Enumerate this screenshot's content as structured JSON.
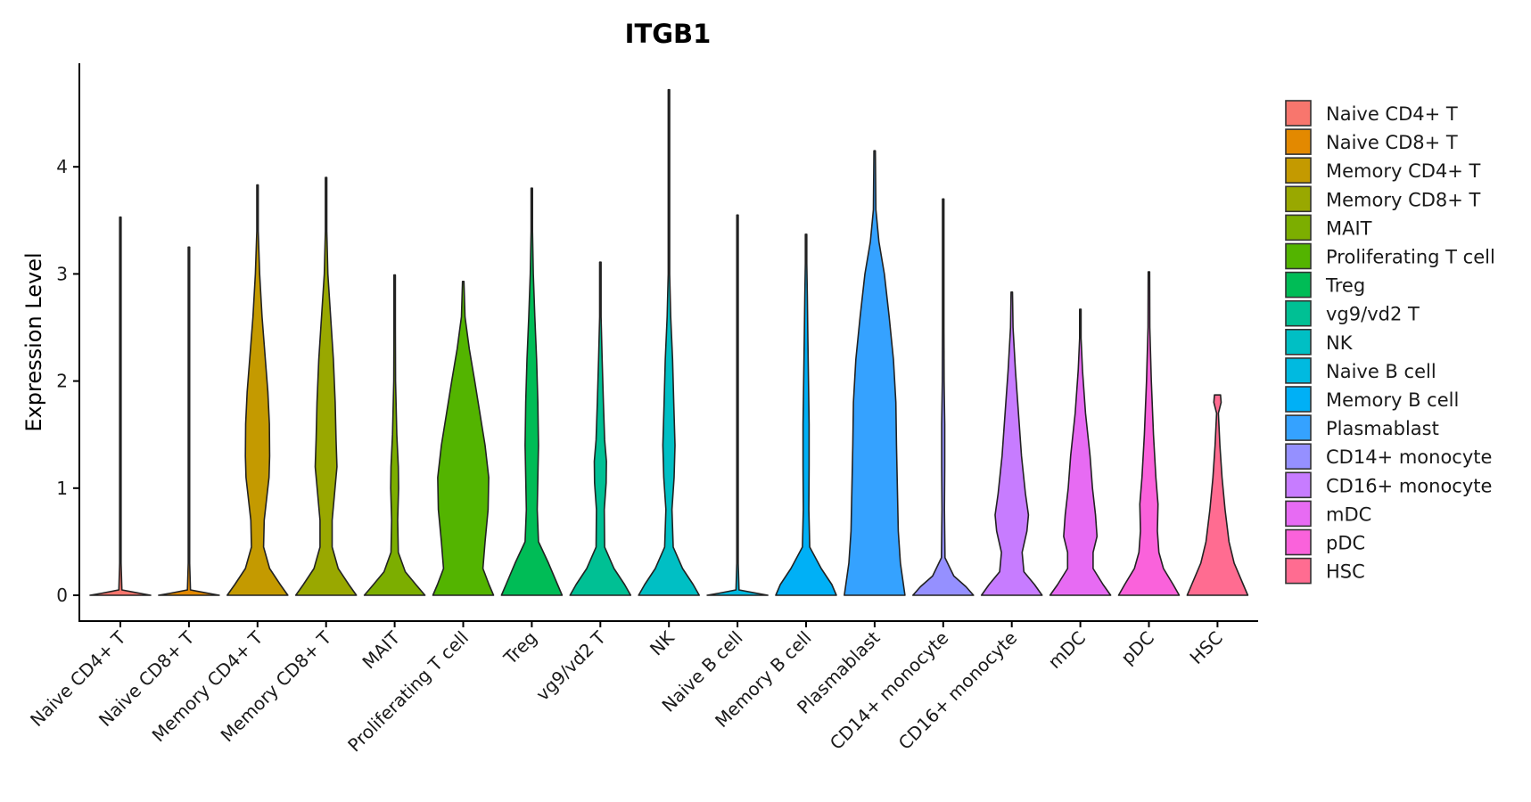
{
  "chart_data": {
    "type": "violin",
    "title": "ITGB1",
    "xlabel": "",
    "ylabel": "Expression Level",
    "ylim": [
      -0.24,
      5.0
    ],
    "yticks": [
      0,
      1,
      2,
      3,
      4
    ],
    "legend_position": "right",
    "categories": [
      "Naive CD4+ T",
      "Naive CD8+ T",
      "Memory CD4+ T",
      "Memory CD8+ T",
      "MAIT",
      "Proliferating T cell",
      "Treg",
      "vg9/vd2 T",
      "NK",
      "Naive B cell",
      "Memory B cell",
      "Plasmablast",
      "CD14+ monocyte",
      "CD16+ monocyte",
      "mDC",
      "pDC",
      "HSC"
    ],
    "colors": [
      "#F8766D",
      "#E38900",
      "#C49A00",
      "#99A800",
      "#7CAE00",
      "#53B400",
      "#00BC56",
      "#00C094",
      "#00BFC4",
      "#00BAE0",
      "#00B0F6",
      "#35A2FF",
      "#9590FF",
      "#C77CFF",
      "#E76BF3",
      "#FA62DB",
      "#FF6C91"
    ],
    "series": [
      {
        "name": "Naive CD4+ T",
        "max": 3.53,
        "profile": [
          [
            0,
            1
          ],
          [
            0.02,
            0.6
          ],
          [
            0.05,
            0.05
          ],
          [
            0.3,
            0.02
          ],
          [
            3.53,
            0.005
          ]
        ]
      },
      {
        "name": "Naive CD8+ T",
        "max": 3.25,
        "profile": [
          [
            0,
            1
          ],
          [
            0.02,
            0.6
          ],
          [
            0.05,
            0.05
          ],
          [
            0.3,
            0.02
          ],
          [
            3.25,
            0.005
          ]
        ]
      },
      {
        "name": "Memory CD4+ T",
        "max": 3.83,
        "profile": [
          [
            0,
            1
          ],
          [
            0.1,
            0.75
          ],
          [
            0.25,
            0.4
          ],
          [
            0.45,
            0.2
          ],
          [
            0.7,
            0.22
          ],
          [
            0.9,
            0.3
          ],
          [
            1.1,
            0.38
          ],
          [
            1.3,
            0.4
          ],
          [
            1.6,
            0.39
          ],
          [
            1.9,
            0.34
          ],
          [
            2.2,
            0.26
          ],
          [
            2.6,
            0.15
          ],
          [
            3.0,
            0.07
          ],
          [
            3.4,
            0.02
          ],
          [
            3.83,
            0.005
          ]
        ]
      },
      {
        "name": "Memory CD8+ T",
        "max": 3.9,
        "profile": [
          [
            0,
            1
          ],
          [
            0.1,
            0.75
          ],
          [
            0.25,
            0.4
          ],
          [
            0.45,
            0.2
          ],
          [
            0.7,
            0.2
          ],
          [
            0.95,
            0.28
          ],
          [
            1.2,
            0.36
          ],
          [
            1.45,
            0.33
          ],
          [
            1.8,
            0.3
          ],
          [
            2.2,
            0.24
          ],
          [
            2.6,
            0.15
          ],
          [
            3.0,
            0.06
          ],
          [
            3.4,
            0.02
          ],
          [
            3.9,
            0.005
          ]
        ]
      },
      {
        "name": "MAIT",
        "max": 2.99,
        "profile": [
          [
            0,
            1
          ],
          [
            0.1,
            0.7
          ],
          [
            0.22,
            0.35
          ],
          [
            0.4,
            0.12
          ],
          [
            0.7,
            0.1
          ],
          [
            1.0,
            0.13
          ],
          [
            1.2,
            0.12
          ],
          [
            1.5,
            0.07
          ],
          [
            2.0,
            0.03
          ],
          [
            2.5,
            0.01
          ],
          [
            2.99,
            0.003
          ]
        ]
      },
      {
        "name": "Proliferating T cell",
        "max": 2.93,
        "profile": [
          [
            0,
            1
          ],
          [
            0.1,
            0.85
          ],
          [
            0.25,
            0.65
          ],
          [
            0.5,
            0.72
          ],
          [
            0.8,
            0.82
          ],
          [
            1.1,
            0.84
          ],
          [
            1.4,
            0.72
          ],
          [
            1.7,
            0.55
          ],
          [
            2.0,
            0.38
          ],
          [
            2.3,
            0.2
          ],
          [
            2.6,
            0.06
          ],
          [
            2.93,
            0.005
          ]
        ]
      },
      {
        "name": "Treg",
        "max": 3.8,
        "profile": [
          [
            0,
            1
          ],
          [
            0.1,
            0.85
          ],
          [
            0.3,
            0.55
          ],
          [
            0.5,
            0.22
          ],
          [
            0.8,
            0.18
          ],
          [
            1.1,
            0.2
          ],
          [
            1.4,
            0.22
          ],
          [
            1.8,
            0.2
          ],
          [
            2.2,
            0.16
          ],
          [
            2.6,
            0.1
          ],
          [
            3.0,
            0.05
          ],
          [
            3.4,
            0.02
          ],
          [
            3.8,
            0.003
          ]
        ]
      },
      {
        "name": "vg9/vd2 T",
        "max": 3.11,
        "profile": [
          [
            0,
            1
          ],
          [
            0.1,
            0.8
          ],
          [
            0.25,
            0.45
          ],
          [
            0.45,
            0.14
          ],
          [
            0.8,
            0.13
          ],
          [
            1.05,
            0.19
          ],
          [
            1.25,
            0.2
          ],
          [
            1.45,
            0.14
          ],
          [
            1.8,
            0.1
          ],
          [
            2.2,
            0.06
          ],
          [
            2.6,
            0.02
          ],
          [
            3.11,
            0.003
          ]
        ]
      },
      {
        "name": "NK",
        "max": 4.72,
        "profile": [
          [
            0,
            1
          ],
          [
            0.1,
            0.8
          ],
          [
            0.25,
            0.45
          ],
          [
            0.45,
            0.14
          ],
          [
            0.8,
            0.1
          ],
          [
            1.1,
            0.17
          ],
          [
            1.4,
            0.2
          ],
          [
            1.8,
            0.16
          ],
          [
            2.2,
            0.12
          ],
          [
            2.6,
            0.06
          ],
          [
            3.0,
            0.02
          ],
          [
            3.5,
            0.006
          ],
          [
            4.72,
            0.002
          ]
        ]
      },
      {
        "name": "Naive B cell",
        "max": 3.55,
        "profile": [
          [
            0,
            1
          ],
          [
            0.02,
            0.6
          ],
          [
            0.05,
            0.05
          ],
          [
            0.3,
            0.02
          ],
          [
            3.55,
            0.005
          ]
        ]
      },
      {
        "name": "Memory B cell",
        "max": 3.37,
        "profile": [
          [
            0,
            1
          ],
          [
            0.1,
            0.85
          ],
          [
            0.25,
            0.5
          ],
          [
            0.45,
            0.12
          ],
          [
            0.8,
            0.09
          ],
          [
            1.2,
            0.1
          ],
          [
            1.6,
            0.1
          ],
          [
            2.0,
            0.08
          ],
          [
            2.4,
            0.06
          ],
          [
            2.8,
            0.04
          ],
          [
            3.1,
            0.01
          ],
          [
            3.37,
            0.003
          ]
        ]
      },
      {
        "name": "Plasmablast",
        "max": 4.15,
        "profile": [
          [
            0,
            1
          ],
          [
            0.1,
            0.95
          ],
          [
            0.3,
            0.85
          ],
          [
            0.6,
            0.78
          ],
          [
            1.0,
            0.75
          ],
          [
            1.4,
            0.72
          ],
          [
            1.8,
            0.7
          ],
          [
            2.2,
            0.62
          ],
          [
            2.6,
            0.48
          ],
          [
            3.0,
            0.32
          ],
          [
            3.3,
            0.14
          ],
          [
            3.6,
            0.04
          ],
          [
            4.15,
            0.003
          ]
        ]
      },
      {
        "name": "CD14+ monocyte",
        "max": 3.7,
        "profile": [
          [
            0,
            1
          ],
          [
            0.08,
            0.75
          ],
          [
            0.18,
            0.35
          ],
          [
            0.35,
            0.06
          ],
          [
            0.8,
            0.04
          ],
          [
            1.2,
            0.05
          ],
          [
            1.6,
            0.05
          ],
          [
            2.0,
            0.03
          ],
          [
            2.5,
            0.02
          ],
          [
            3.0,
            0.008
          ],
          [
            3.7,
            0.002
          ]
        ]
      },
      {
        "name": "CD16+ monocyte",
        "max": 2.83,
        "profile": [
          [
            0,
            1
          ],
          [
            0.1,
            0.75
          ],
          [
            0.22,
            0.4
          ],
          [
            0.4,
            0.34
          ],
          [
            0.6,
            0.5
          ],
          [
            0.75,
            0.55
          ],
          [
            0.95,
            0.45
          ],
          [
            1.3,
            0.32
          ],
          [
            1.7,
            0.22
          ],
          [
            2.1,
            0.12
          ],
          [
            2.5,
            0.04
          ],
          [
            2.83,
            0.003
          ]
        ]
      },
      {
        "name": "mDC",
        "max": 2.67,
        "profile": [
          [
            0,
            1
          ],
          [
            0.1,
            0.75
          ],
          [
            0.25,
            0.42
          ],
          [
            0.4,
            0.42
          ],
          [
            0.55,
            0.55
          ],
          [
            0.75,
            0.5
          ],
          [
            1.0,
            0.4
          ],
          [
            1.3,
            0.32
          ],
          [
            1.7,
            0.17
          ],
          [
            2.1,
            0.07
          ],
          [
            2.4,
            0.02
          ],
          [
            2.67,
            0.003
          ]
        ]
      },
      {
        "name": "pDC",
        "max": 3.02,
        "profile": [
          [
            0,
            1
          ],
          [
            0.1,
            0.8
          ],
          [
            0.25,
            0.48
          ],
          [
            0.4,
            0.33
          ],
          [
            0.6,
            0.28
          ],
          [
            0.85,
            0.3
          ],
          [
            1.1,
            0.23
          ],
          [
            1.5,
            0.15
          ],
          [
            2.0,
            0.08
          ],
          [
            2.5,
            0.03
          ],
          [
            3.02,
            0.003
          ]
        ]
      },
      {
        "name": "HSC",
        "max": 1.87,
        "profile": [
          [
            0,
            1
          ],
          [
            0.1,
            0.85
          ],
          [
            0.3,
            0.55
          ],
          [
            0.5,
            0.38
          ],
          [
            0.8,
            0.25
          ],
          [
            1.1,
            0.15
          ],
          [
            1.4,
            0.08
          ],
          [
            1.7,
            0.03
          ],
          [
            1.8,
            0.12
          ],
          [
            1.87,
            0.1
          ]
        ]
      }
    ]
  }
}
